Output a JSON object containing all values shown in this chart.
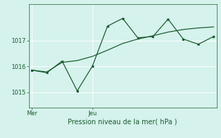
{
  "xlabel": "Pression niveau de la mer( hPa )",
  "bg_color": "#d5f2ec",
  "grid_color": "#ffffff",
  "line_color": "#1a5c2e",
  "ylim": [
    1014.4,
    1018.4
  ],
  "y_ticks": [
    1015,
    1016,
    1017
  ],
  "x_tick_positions": [
    0,
    4
  ],
  "x_tick_labels": [
    "Mer",
    "Jeu"
  ],
  "xlim": [
    -0.2,
    12.2
  ],
  "series1_x": [
    0,
    1,
    2,
    3,
    4,
    5,
    6,
    7,
    8,
    9,
    10,
    11,
    12
  ],
  "series1_y": [
    1015.85,
    1015.78,
    1016.15,
    1016.22,
    1016.38,
    1016.62,
    1016.88,
    1017.05,
    1017.18,
    1017.32,
    1017.42,
    1017.48,
    1017.52
  ],
  "series2_x": [
    0,
    1,
    2,
    3,
    4,
    5,
    6,
    7,
    8,
    9,
    10,
    11,
    12
  ],
  "series2_y": [
    1015.85,
    1015.75,
    1016.2,
    1015.05,
    1016.0,
    1017.55,
    1017.85,
    1017.1,
    1017.15,
    1017.82,
    1017.05,
    1016.85,
    1017.15
  ],
  "xlabel_fontsize": 7,
  "ytick_fontsize": 6,
  "xtick_fontsize": 6
}
